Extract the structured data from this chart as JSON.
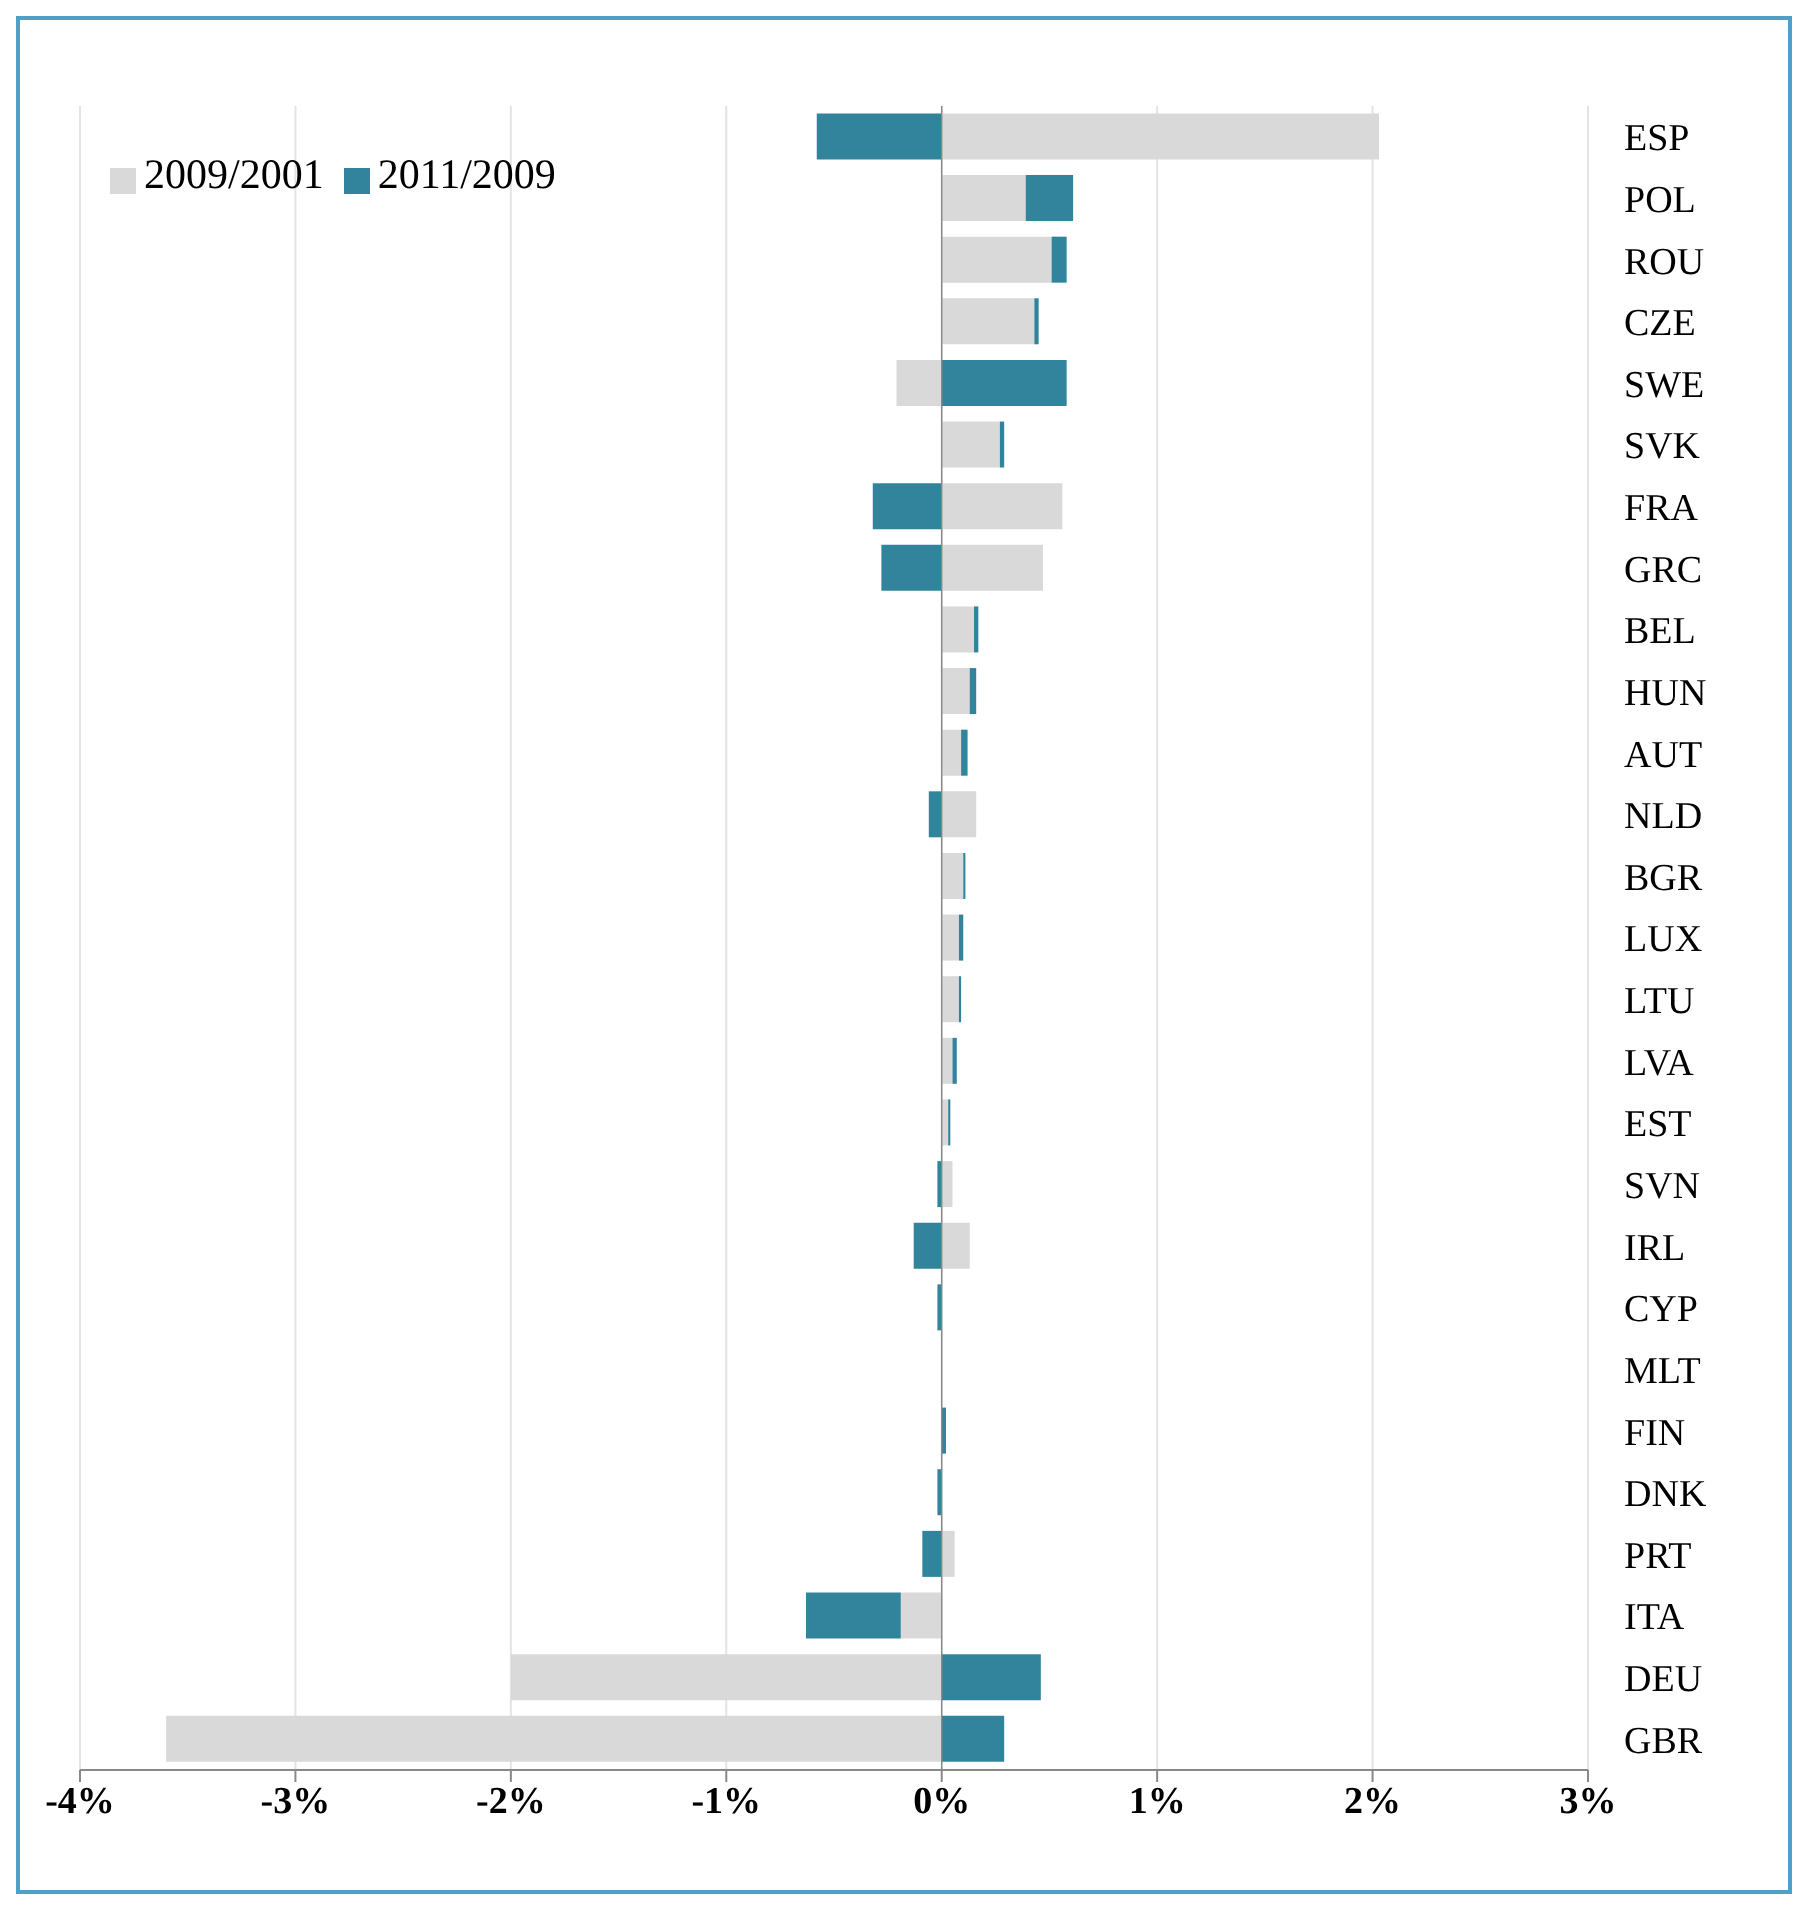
{
  "chart_data": {
    "type": "bar",
    "orientation": "horizontal",
    "stacked": true,
    "categories": [
      "ESP",
      "POL",
      "ROU",
      "CZE",
      "SWE",
      "SVK",
      "FRA",
      "GRC",
      "BEL",
      "HUN",
      "AUT",
      "NLD",
      "BGR",
      "LUX",
      "LTU",
      "LVA",
      "EST",
      "SVN",
      "IRL",
      "CYP",
      "MLT",
      "FIN",
      "DNK",
      "PRT",
      "ITA",
      "DEU",
      "GBR"
    ],
    "series": [
      {
        "name": "2009/2001",
        "color": "#d9d9d9",
        "values": [
          2.03,
          0.39,
          0.51,
          0.43,
          -0.21,
          0.27,
          0.56,
          0.47,
          0.15,
          0.13,
          0.09,
          0.16,
          0.1,
          0.08,
          0.08,
          0.05,
          0.03,
          0.05,
          0.13,
          null,
          0,
          null,
          null,
          0.06,
          -0.19,
          -2.0,
          -3.6
        ]
      },
      {
        "name": "2011/2009",
        "color": "#31849b",
        "values": [
          -0.58,
          0.22,
          0.07,
          0.02,
          0.58,
          0.02,
          -0.32,
          -0.28,
          0.02,
          0.03,
          0.03,
          -0.06,
          0.01,
          0.02,
          0.01,
          0.02,
          0.01,
          -0.02,
          -0.13,
          -0.02,
          0,
          0.02,
          -0.02,
          -0.09,
          -0.44,
          0.46,
          0.29
        ]
      }
    ],
    "xlim": [
      -4,
      3
    ],
    "xticks": [
      {
        "value": -4,
        "label": "-4%"
      },
      {
        "value": -3,
        "label": "-3%"
      },
      {
        "value": -2,
        "label": "-2%"
      },
      {
        "value": -1,
        "label": "-1%"
      },
      {
        "value": 0,
        "label": "0%"
      },
      {
        "value": 1,
        "label": "1%"
      },
      {
        "value": 2,
        "label": "2%"
      },
      {
        "value": 3,
        "label": "3%"
      }
    ],
    "grid": "x",
    "legend": "top left"
  }
}
